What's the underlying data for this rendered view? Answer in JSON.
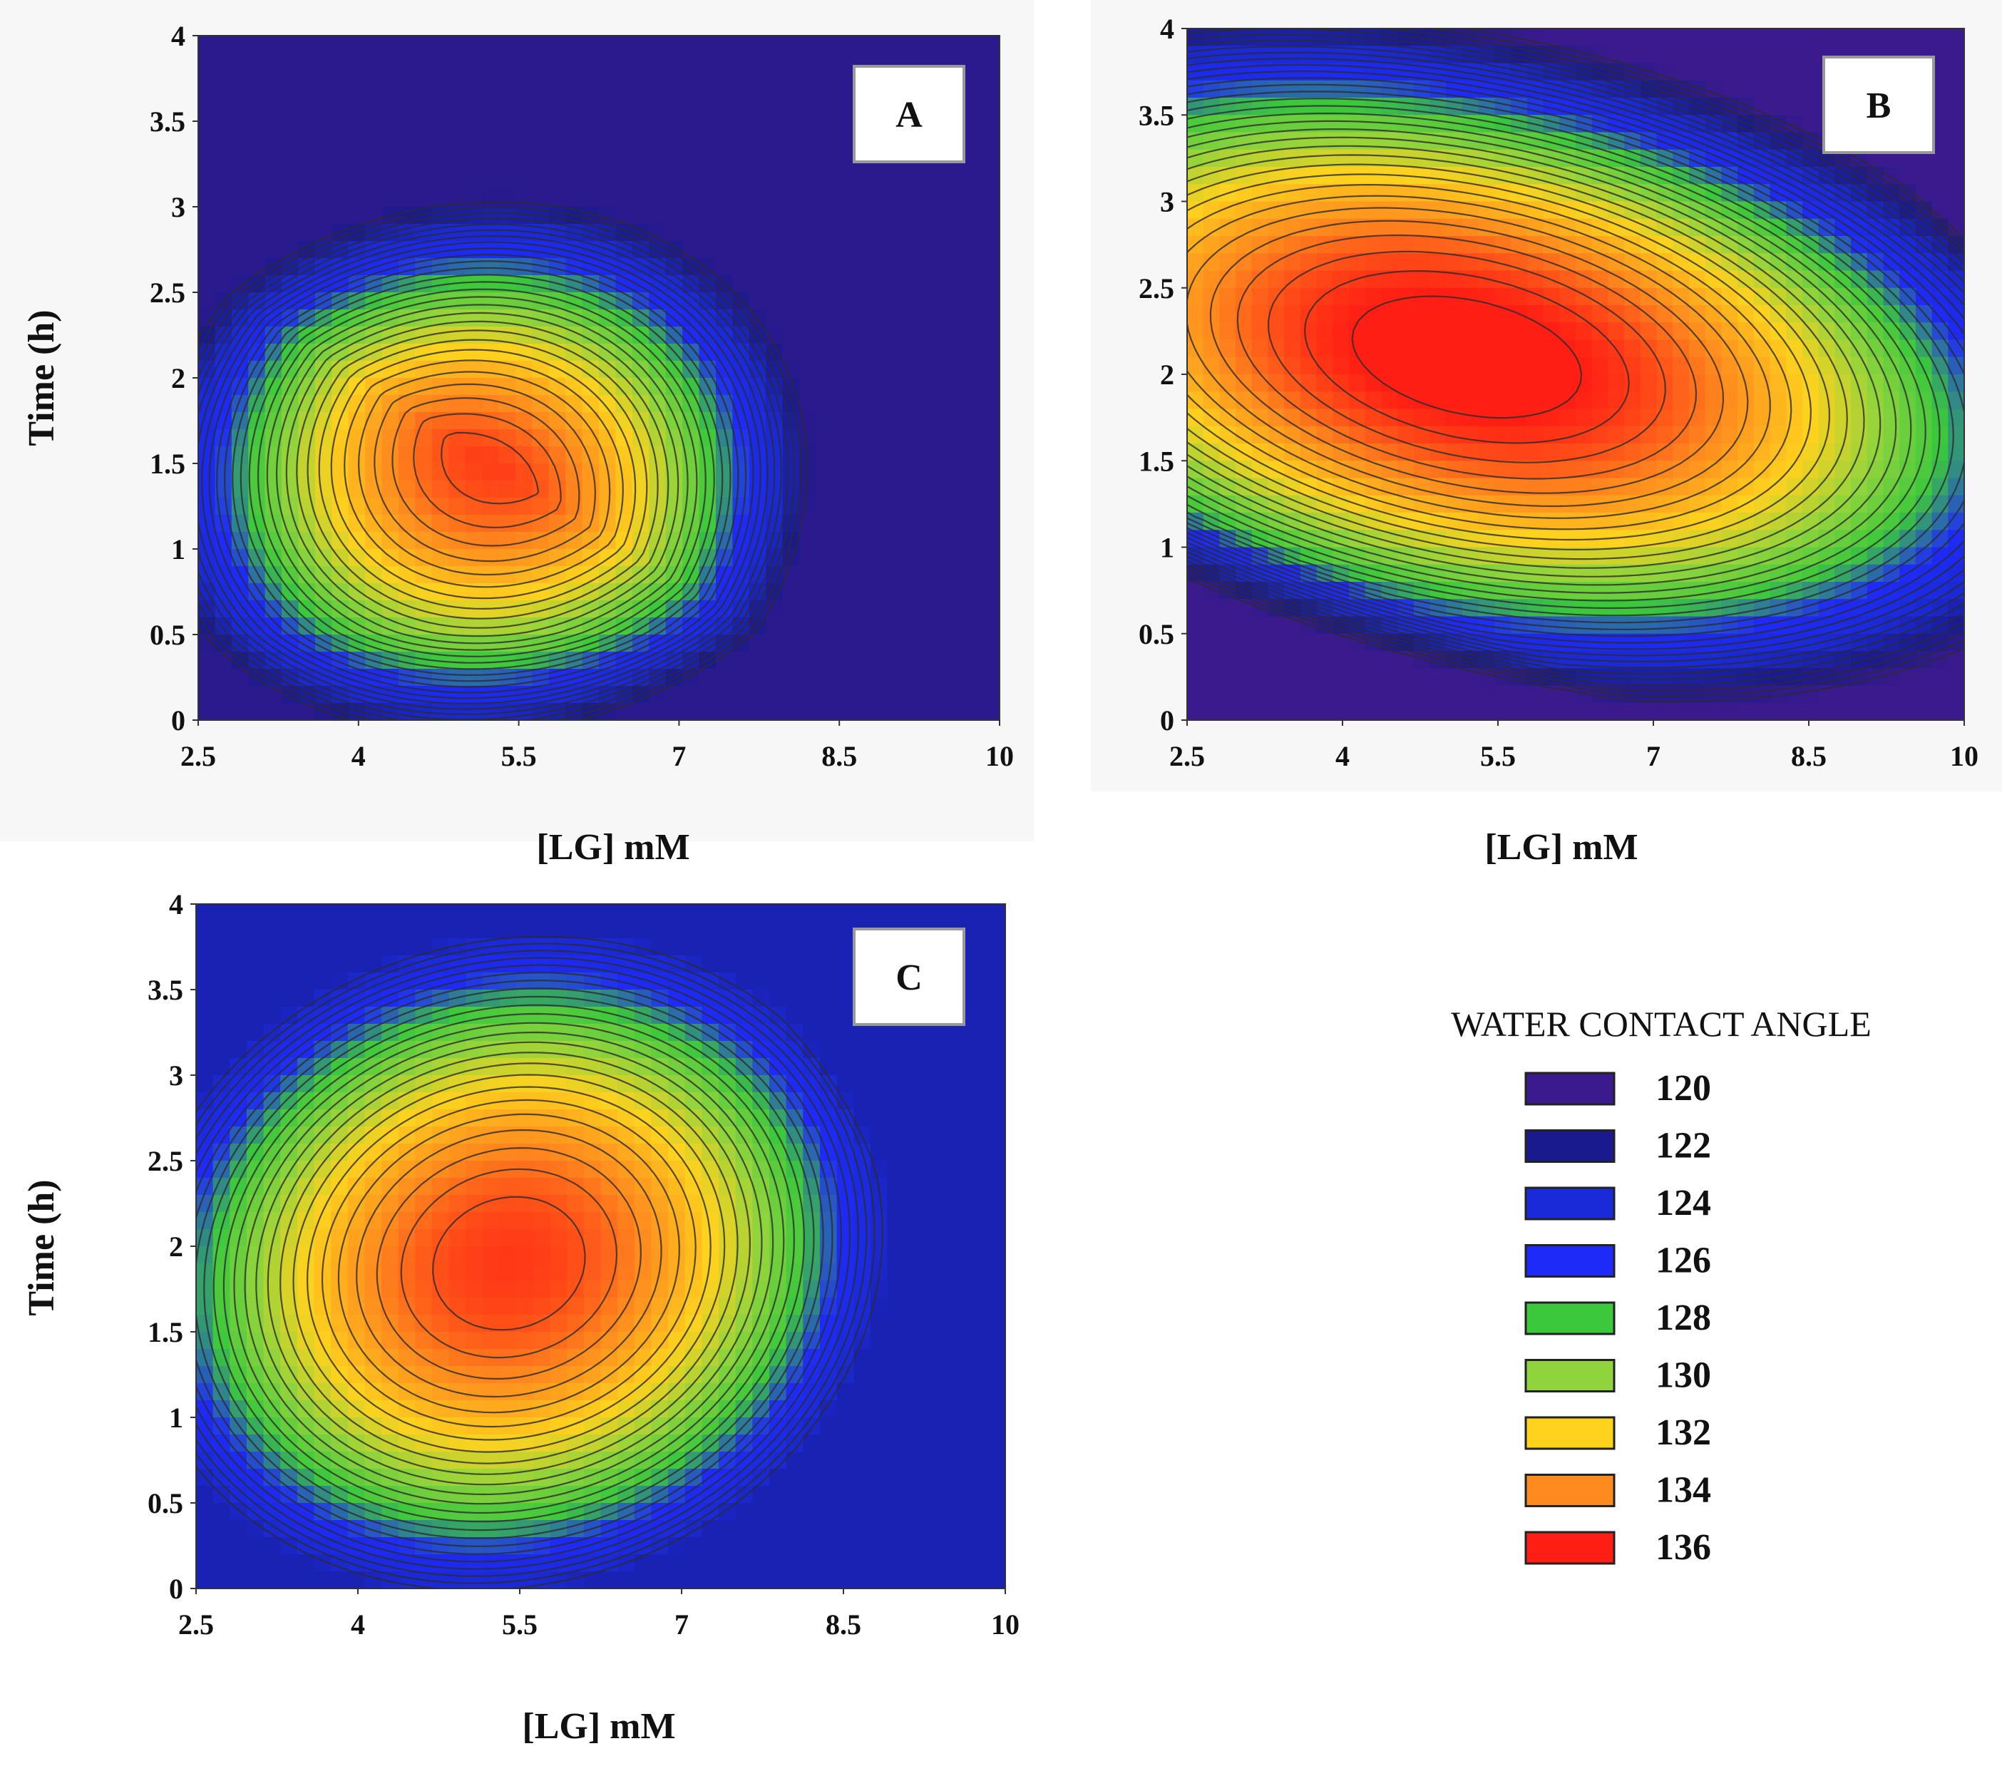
{
  "chart_data": [
    {
      "type": "contour",
      "panel": "A",
      "xlabel": "[LG] mM",
      "ylabel": "Time (h)",
      "xlim": [
        2.5,
        10
      ],
      "ylim": [
        0,
        4
      ],
      "x_ticks": [
        "2.5",
        "4",
        "5.5",
        "7",
        "8.5",
        "10"
      ],
      "y_ticks": [
        "0",
        "0.5",
        "1",
        "1.5",
        "2",
        "2.5",
        "3",
        "3.5",
        "4"
      ],
      "z_label": "WATER CONTACT ANGLE",
      "z_range": [
        121,
        135.5
      ],
      "optimum": {
        "x": 5.4,
        "y": 1.6,
        "z": 135.5
      },
      "surface": "quadratic_peak_with_blue_upper_right"
    },
    {
      "type": "contour",
      "panel": "B",
      "xlabel": "[LG] mM",
      "ylabel": "",
      "xlim": [
        2.5,
        10
      ],
      "ylim": [
        0,
        4
      ],
      "x_ticks": [
        "2.5",
        "4",
        "5.5",
        "7",
        "8.5",
        "10"
      ],
      "y_ticks": [
        "0",
        "0.5",
        "1",
        "1.5",
        "2",
        "2.5",
        "3",
        "3.5",
        "4"
      ],
      "z_label": "WATER CONTACT ANGLE",
      "z_range": [
        120,
        136.5
      ],
      "optimum": {
        "x": 5.2,
        "y": 2.1,
        "z": 136.5
      },
      "surface": "broad_peak_with_blue_lower_left"
    },
    {
      "type": "contour",
      "panel": "C",
      "xlabel": "[LG] mM",
      "ylabel": "Time (h)",
      "xlim": [
        2.5,
        10
      ],
      "ylim": [
        0,
        4
      ],
      "x_ticks": [
        "2.5",
        "4",
        "5.5",
        "7",
        "8.5",
        "10"
      ],
      "y_ticks": [
        "0",
        "0.5",
        "1",
        "1.5",
        "2",
        "2.5",
        "3",
        "3.5",
        "4"
      ],
      "z_label": "WATER CONTACT ANGLE",
      "z_range": [
        123,
        135.5
      ],
      "optimum": {
        "x": 5.4,
        "y": 1.9,
        "z": 135.5
      },
      "surface": "elliptical_peak_with_blue_right_corners"
    }
  ],
  "legend": {
    "title": "WATER CONTACT ANGLE",
    "items": [
      {
        "value": "120",
        "color": "#3a1a8c"
      },
      {
        "value": "122",
        "color": "#1a1a8f"
      },
      {
        "value": "124",
        "color": "#1a2ad8"
      },
      {
        "value": "126",
        "color": "#1e2af8"
      },
      {
        "value": "128",
        "color": "#3cc83c"
      },
      {
        "value": "130",
        "color": "#8fd43c"
      },
      {
        "value": "132",
        "color": "#ffd21e"
      },
      {
        "value": "134",
        "color": "#ff8a1e"
      },
      {
        "value": "136",
        "color": "#ff1e14"
      }
    ]
  }
}
